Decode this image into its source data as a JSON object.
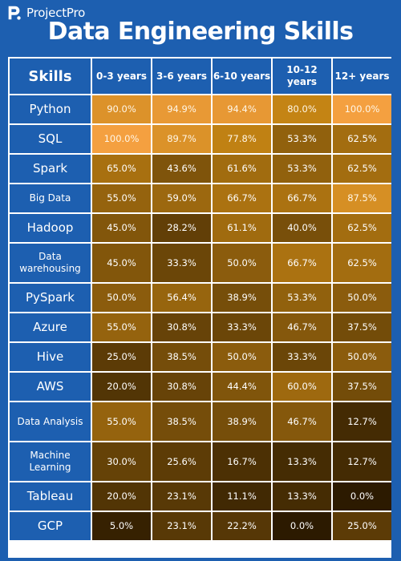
{
  "brand": {
    "name": "ProjectPro",
    "icon": "projectpro-logo-icon"
  },
  "title": "Data Engineering Skills",
  "colors": {
    "background": "#1d5fb0",
    "low": "#2c1a00",
    "high": "#f4a040"
  },
  "chart_data": {
    "type": "heatmap",
    "title": "Data Engineering Skills",
    "row_header": "Skills",
    "columns": [
      "0-3 years",
      "3-6 years",
      "6-10 years",
      "10-12 years",
      "12+ years"
    ],
    "rows": [
      {
        "skill": "Python",
        "values": [
          "90.0%",
          "94.9%",
          "94.4%",
          "80.0%",
          "100.0%"
        ]
      },
      {
        "skill": "SQL",
        "values": [
          "100.0%",
          "89.7%",
          "77.8%",
          "53.3%",
          "62.5%"
        ]
      },
      {
        "skill": "Spark",
        "values": [
          "65.0%",
          "43.6%",
          "61.6%",
          "53.3%",
          "62.5%"
        ]
      },
      {
        "skill": "Big Data",
        "values": [
          "55.0%",
          "59.0%",
          "66.7%",
          "66.7%",
          "87.5%"
        ]
      },
      {
        "skill": "Hadoop",
        "values": [
          "45.0%",
          "28.2%",
          "61.1%",
          "40.0%",
          "62.5%"
        ]
      },
      {
        "skill": "Data warehousing",
        "values": [
          "45.0%",
          "33.3%",
          "50.0%",
          "66.7%",
          "62.5%"
        ]
      },
      {
        "skill": "PySpark",
        "values": [
          "50.0%",
          "56.4%",
          "38.9%",
          "53.3%",
          "50.0%"
        ]
      },
      {
        "skill": "Azure",
        "values": [
          "55.0%",
          "30.8%",
          "33.3%",
          "46.7%",
          "37.5%"
        ]
      },
      {
        "skill": "Hive",
        "values": [
          "25.0%",
          "38.5%",
          "50.0%",
          "33.3%",
          "50.0%"
        ]
      },
      {
        "skill": "AWS",
        "values": [
          "20.0%",
          "30.8%",
          "44.4%",
          "60.0%",
          "37.5%"
        ]
      },
      {
        "skill": "Data Analysis",
        "values": [
          "55.0%",
          "38.5%",
          "38.9%",
          "46.7%",
          "12.7%"
        ]
      },
      {
        "skill": "Machine Learning",
        "values": [
          "30.0%",
          "25.6%",
          "16.7%",
          "13.3%",
          "12.7%"
        ]
      },
      {
        "skill": "Tableau",
        "values": [
          "20.0%",
          "23.1%",
          "11.1%",
          "13.3%",
          "0.0%"
        ]
      },
      {
        "skill": "GCP",
        "values": [
          "5.0%",
          "23.1%",
          "22.2%",
          "0.0%",
          "25.0%"
        ]
      }
    ]
  }
}
